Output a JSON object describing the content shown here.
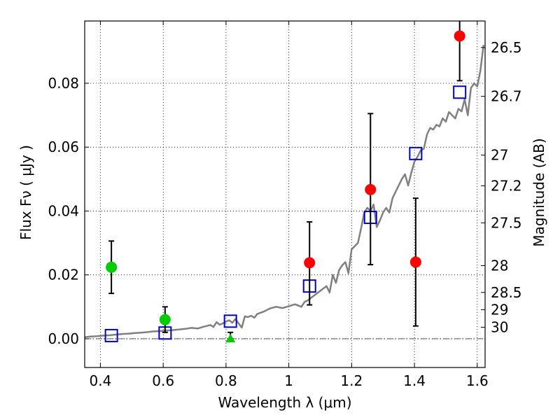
{
  "chart_data": {
    "type": "scatter",
    "xlabel": "Wavelength  λ (μm)",
    "ylabel_left": "Flux  Fν  ( μJy )",
    "ylabel_right": "Magnitude (AB)",
    "xlim": [
      0.35,
      1.625
    ],
    "ylim": [
      -0.009,
      0.0995
    ],
    "x_ticks": [
      0.4,
      0.6,
      0.8,
      1.0,
      1.2,
      1.4,
      1.6
    ],
    "x_tick_labels": [
      "0.4",
      "0.6",
      "0.8",
      "1",
      "1.2",
      "1.4",
      "1.6"
    ],
    "y_ticks": [
      0.0,
      0.02,
      0.04,
      0.06,
      0.08
    ],
    "y_tick_labels": [
      "0.00",
      "0.02",
      "0.04",
      "0.06",
      "0.08"
    ],
    "mag_ticks": [
      {
        "label": "26.5",
        "flux": 0.0912
      },
      {
        "label": "26.7",
        "flux": 0.0759
      },
      {
        "label": "27",
        "flux": 0.0575
      },
      {
        "label": "27.2",
        "flux": 0.0479
      },
      {
        "label": "27.5",
        "flux": 0.0363
      },
      {
        "label": "28",
        "flux": 0.0229
      },
      {
        "label": "28.5",
        "flux": 0.0145
      },
      {
        "label": "29",
        "flux": 0.0091
      },
      {
        "label": "30",
        "flux": 0.0036
      }
    ],
    "grid": true,
    "series": [
      {
        "name": "model_spectrum",
        "kind": "line",
        "color": "#808080",
        "x": [
          0.35,
          0.37,
          0.39,
          0.41,
          0.43,
          0.45,
          0.47,
          0.49,
          0.51,
          0.53,
          0.55,
          0.57,
          0.59,
          0.61,
          0.63,
          0.65,
          0.67,
          0.69,
          0.71,
          0.73,
          0.75,
          0.76,
          0.77,
          0.78,
          0.79,
          0.8,
          0.81,
          0.82,
          0.83,
          0.84,
          0.85,
          0.86,
          0.87,
          0.88,
          0.89,
          0.9,
          0.92,
          0.94,
          0.96,
          0.98,
          1.0,
          1.02,
          1.04,
          1.05,
          1.06,
          1.08,
          1.1,
          1.12,
          1.13,
          1.14,
          1.15,
          1.16,
          1.17,
          1.18,
          1.19,
          1.2,
          1.21,
          1.22,
          1.23,
          1.24,
          1.25,
          1.26,
          1.27,
          1.28,
          1.29,
          1.3,
          1.31,
          1.32,
          1.33,
          1.34,
          1.35,
          1.36,
          1.37,
          1.38,
          1.39,
          1.4,
          1.41,
          1.42,
          1.43,
          1.44,
          1.45,
          1.46,
          1.47,
          1.48,
          1.49,
          1.5,
          1.51,
          1.52,
          1.53,
          1.54,
          1.55,
          1.56,
          1.57,
          1.58,
          1.59,
          1.6,
          1.61,
          1.62
        ],
        "y": [
          0.0005,
          0.0007,
          0.0008,
          0.001,
          0.0011,
          0.0013,
          0.0015,
          0.0016,
          0.0018,
          0.0019,
          0.0021,
          0.0023,
          0.0024,
          0.0026,
          0.0027,
          0.0029,
          0.0031,
          0.0034,
          0.0032,
          0.0038,
          0.0043,
          0.0037,
          0.0052,
          0.0044,
          0.0048,
          0.0054,
          0.0058,
          0.005,
          0.0062,
          0.0048,
          0.0035,
          0.007,
          0.0068,
          0.0072,
          0.0066,
          0.0078,
          0.0085,
          0.0095,
          0.01,
          0.0096,
          0.0102,
          0.0108,
          0.01,
          0.0115,
          0.012,
          0.0135,
          0.015,
          0.0165,
          0.0145,
          0.02,
          0.0175,
          0.0215,
          0.023,
          0.024,
          0.0205,
          0.028,
          0.029,
          0.03,
          0.0345,
          0.0395,
          0.041,
          0.04,
          0.042,
          0.035,
          0.037,
          0.0395,
          0.041,
          0.0395,
          0.044,
          0.046,
          0.048,
          0.05,
          0.0515,
          0.048,
          0.052,
          0.0555,
          0.057,
          0.059,
          0.0595,
          0.064,
          0.066,
          0.0655,
          0.067,
          0.0665,
          0.069,
          0.068,
          0.071,
          0.07,
          0.069,
          0.072,
          0.0712,
          0.075,
          0.07,
          0.0785,
          0.08,
          0.079,
          0.084,
          0.092
        ]
      },
      {
        "name": "model_photometry",
        "kind": "open_square",
        "color": "#0000cc",
        "x": [
          0.435,
          0.606,
          0.814,
          1.066,
          1.26,
          1.404,
          1.544
        ],
        "y": [
          0.001,
          0.0018,
          0.0055,
          0.0165,
          0.038,
          0.058,
          0.0772
        ]
      },
      {
        "name": "observed_detections",
        "kind": "filled_circle",
        "color": "#ff0000",
        "x": [
          1.066,
          1.26,
          1.404,
          1.544
        ],
        "y": [
          0.0238,
          0.0467,
          0.024,
          0.0948
        ],
        "err_low": [
          0.0132,
          0.0235,
          0.02,
          0.014
        ],
        "err_high": [
          0.0128,
          0.0238,
          0.02,
          0.014
        ]
      },
      {
        "name": "observed_hst_optical",
        "kind": "filled_circle",
        "color": "#00cc00",
        "x": [
          0.435,
          0.606
        ],
        "y": [
          0.0224,
          0.006
        ],
        "err_low": [
          0.0082,
          0.004
        ],
        "err_high": [
          0.0082,
          0.004
        ]
      },
      {
        "name": "upper_limit",
        "kind": "triangle",
        "color": "#00cc00",
        "x": [
          0.814
        ],
        "y": [
          0.0
        ],
        "err_low": [
          0.0
        ],
        "err_high": [
          0.002
        ]
      }
    ]
  }
}
